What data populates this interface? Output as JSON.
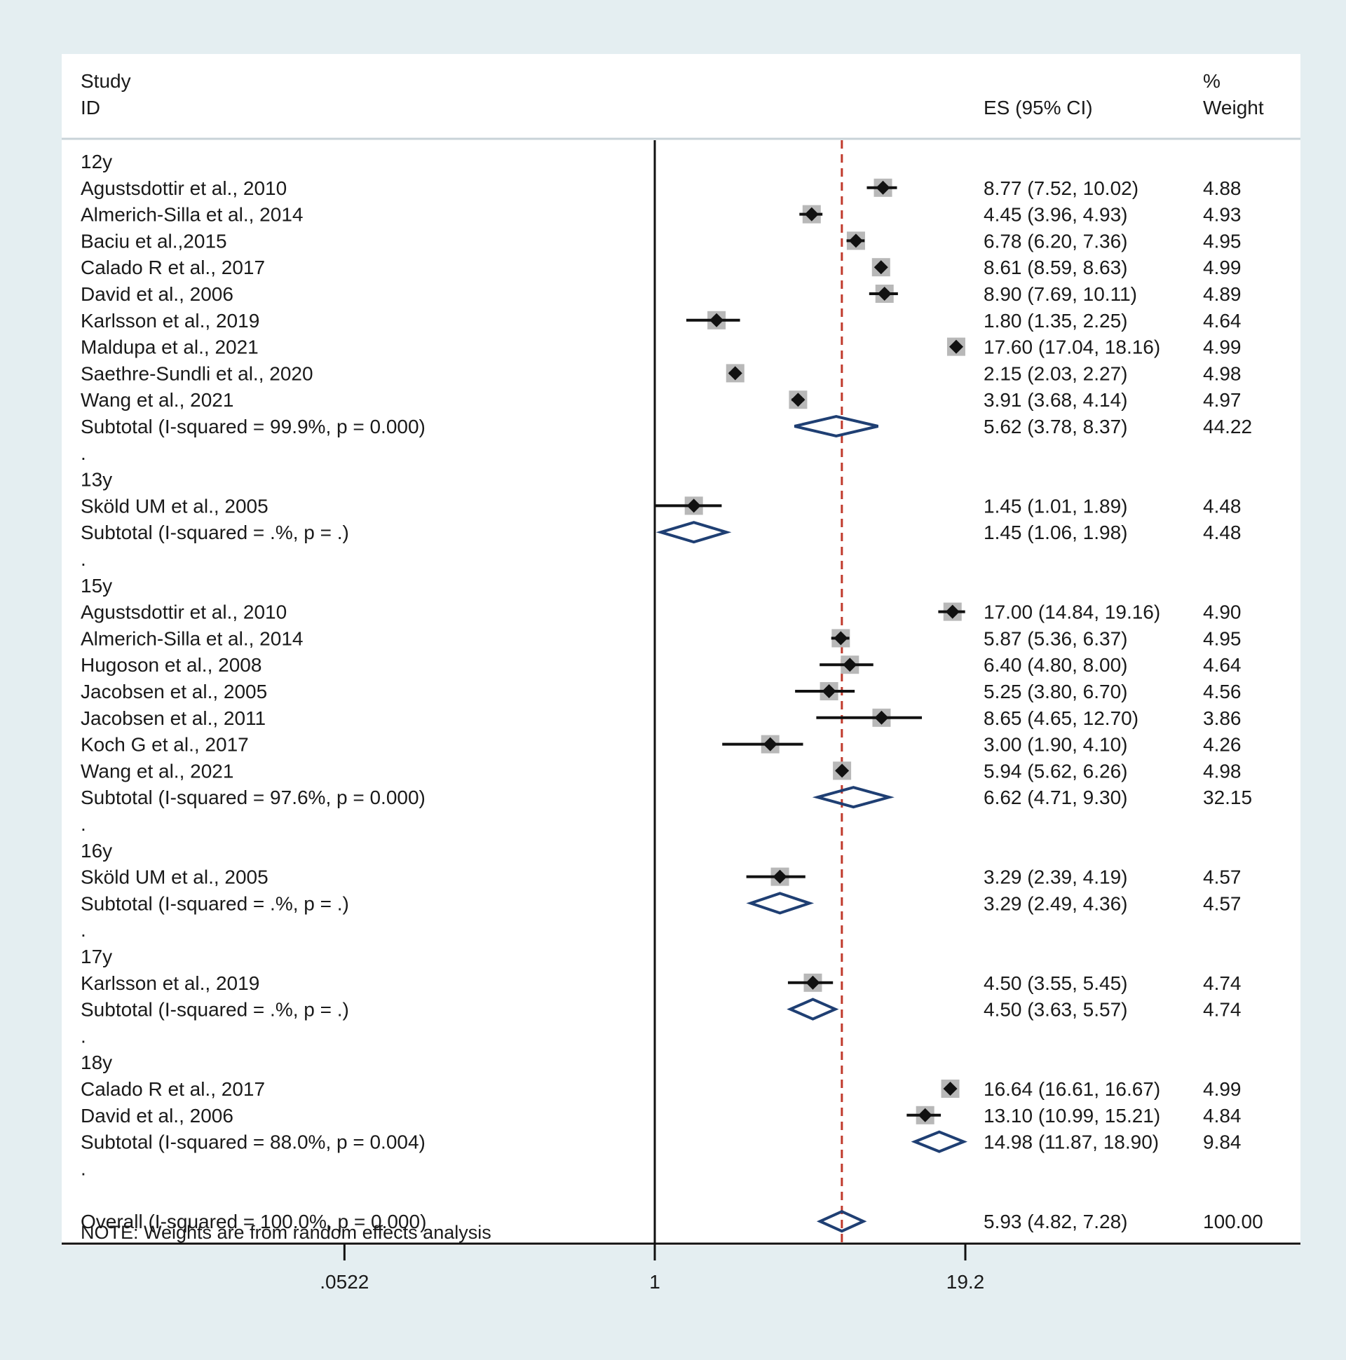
{
  "chart_data": {
    "type": "forest",
    "scale": "log",
    "headers": {
      "study_line1": "Study",
      "study_line2": "ID",
      "es": "ES (95% CI)",
      "weight_line1": "%",
      "weight_line2": "Weight"
    },
    "x_ticks": [
      {
        "value": 0.0522,
        "label": ".0522"
      },
      {
        "value": 1,
        "label": "1"
      },
      {
        "value": 19.2,
        "label": "19.2"
      }
    ],
    "reference_line": 1,
    "overall_line": 5.93,
    "note": "NOTE: Weights are from random effects analysis",
    "rows": [
      {
        "type": "group",
        "label": "12y"
      },
      {
        "type": "study",
        "label": "Agustsdottir et al., 2010",
        "es": 8.77,
        "lo": 7.52,
        "hi": 10.02,
        "es_text": "8.77 (7.52, 10.02)",
        "weight": 4.88,
        "weight_text": "4.88"
      },
      {
        "type": "study",
        "label": "Almerich-Silla et al., 2014",
        "es": 4.45,
        "lo": 3.96,
        "hi": 4.93,
        "es_text": "4.45 (3.96, 4.93)",
        "weight": 4.93,
        "weight_text": "4.93"
      },
      {
        "type": "study",
        "label": "Baciu et al.,2015",
        "es": 6.78,
        "lo": 6.2,
        "hi": 7.36,
        "es_text": "6.78 (6.20, 7.36)",
        "weight": 4.95,
        "weight_text": "4.95"
      },
      {
        "type": "study",
        "label": "Calado R et al., 2017",
        "es": 8.61,
        "lo": 8.59,
        "hi": 8.63,
        "es_text": "8.61 (8.59, 8.63)",
        "weight": 4.99,
        "weight_text": "4.99"
      },
      {
        "type": "study",
        "label": "David  et al., 2006",
        "es": 8.9,
        "lo": 7.69,
        "hi": 10.11,
        "es_text": "8.90 (7.69, 10.11)",
        "weight": 4.89,
        "weight_text": "4.89"
      },
      {
        "type": "study",
        "label": "Karlsson et al., 2019",
        "es": 1.8,
        "lo": 1.35,
        "hi": 2.25,
        "es_text": "1.80 (1.35, 2.25)",
        "weight": 4.64,
        "weight_text": "4.64"
      },
      {
        "type": "study",
        "label": "Maldupa et al., 2021",
        "es": 17.6,
        "lo": 17.04,
        "hi": 18.16,
        "es_text": "17.60 (17.04, 18.16)",
        "weight": 4.99,
        "weight_text": "4.99"
      },
      {
        "type": "study",
        "label": "Saethre-Sundli  et al., 2020",
        "es": 2.15,
        "lo": 2.03,
        "hi": 2.27,
        "es_text": "2.15 (2.03, 2.27)",
        "weight": 4.98,
        "weight_text": "4.98"
      },
      {
        "type": "study",
        "label": "Wang et al., 2021",
        "es": 3.91,
        "lo": 3.68,
        "hi": 4.14,
        "es_text": "3.91 (3.68, 4.14)",
        "weight": 4.97,
        "weight_text": "4.97"
      },
      {
        "type": "subtotal",
        "label": "Subtotal  (I-squared = 99.9%, p = 0.000)",
        "es": 5.62,
        "lo": 3.78,
        "hi": 8.37,
        "es_text": "5.62 (3.78, 8.37)",
        "weight": 44.22,
        "weight_text": "44.22"
      },
      {
        "type": "spacer",
        "label": "."
      },
      {
        "type": "group",
        "label": "13y"
      },
      {
        "type": "study",
        "label": "Sköld UM et al., 2005",
        "es": 1.45,
        "lo": 1.01,
        "hi": 1.89,
        "es_text": "1.45 (1.01, 1.89)",
        "weight": 4.48,
        "weight_text": "4.48"
      },
      {
        "type": "subtotal",
        "label": "Subtotal  (I-squared = .%, p = .)",
        "es": 1.45,
        "lo": 1.06,
        "hi": 1.98,
        "es_text": "1.45 (1.06, 1.98)",
        "weight": 4.48,
        "weight_text": "4.48"
      },
      {
        "type": "spacer",
        "label": "."
      },
      {
        "type": "group",
        "label": "15y"
      },
      {
        "type": "study",
        "label": "Agustsdottir et al., 2010",
        "es": 17.0,
        "lo": 14.84,
        "hi": 19.16,
        "es_text": "17.00 (14.84, 19.16)",
        "weight": 4.9,
        "weight_text": "4.90"
      },
      {
        "type": "study",
        "label": "Almerich-Silla et al., 2014",
        "es": 5.87,
        "lo": 5.36,
        "hi": 6.37,
        "es_text": "5.87 (5.36, 6.37)",
        "weight": 4.95,
        "weight_text": "4.95"
      },
      {
        "type": "study",
        "label": "Hugoson et al., 2008",
        "es": 6.4,
        "lo": 4.8,
        "hi": 8.0,
        "es_text": "6.40 (4.80, 8.00)",
        "weight": 4.64,
        "weight_text": "4.64"
      },
      {
        "type": "study",
        "label": "Jacobsen et al., 2005",
        "es": 5.25,
        "lo": 3.8,
        "hi": 6.7,
        "es_text": "5.25 (3.80, 6.70)",
        "weight": 4.56,
        "weight_text": "4.56"
      },
      {
        "type": "study",
        "label": "Jacobsen et al., 2011",
        "es": 8.65,
        "lo": 4.65,
        "hi": 12.7,
        "es_text": "8.65 (4.65, 12.70)",
        "weight": 3.86,
        "weight_text": "3.86"
      },
      {
        "type": "study",
        "label": "Koch G et al., 2017",
        "es": 3.0,
        "lo": 1.9,
        "hi": 4.1,
        "es_text": "3.00 (1.90, 4.10)",
        "weight": 4.26,
        "weight_text": "4.26"
      },
      {
        "type": "study",
        "label": "Wang et al., 2021",
        "es": 5.94,
        "lo": 5.62,
        "hi": 6.26,
        "es_text": "5.94 (5.62, 6.26)",
        "weight": 4.98,
        "weight_text": "4.98"
      },
      {
        "type": "subtotal",
        "label": "Subtotal  (I-squared = 97.6%, p = 0.000)",
        "es": 6.62,
        "lo": 4.71,
        "hi": 9.3,
        "es_text": "6.62 (4.71, 9.30)",
        "weight": 32.15,
        "weight_text": "32.15"
      },
      {
        "type": "spacer",
        "label": "."
      },
      {
        "type": "group",
        "label": "16y"
      },
      {
        "type": "study",
        "label": "Sköld UM et al., 2005",
        "es": 3.29,
        "lo": 2.39,
        "hi": 4.19,
        "es_text": "3.29 (2.39, 4.19)",
        "weight": 4.57,
        "weight_text": "4.57"
      },
      {
        "type": "subtotal",
        "label": "Subtotal  (I-squared = .%, p = .)",
        "es": 3.29,
        "lo": 2.49,
        "hi": 4.36,
        "es_text": "3.29 (2.49, 4.36)",
        "weight": 4.57,
        "weight_text": "4.57"
      },
      {
        "type": "spacer",
        "label": "."
      },
      {
        "type": "group",
        "label": "17y"
      },
      {
        "type": "study",
        "label": "Karlsson et al., 2019",
        "es": 4.5,
        "lo": 3.55,
        "hi": 5.45,
        "es_text": "4.50 (3.55, 5.45)",
        "weight": 4.74,
        "weight_text": "4.74"
      },
      {
        "type": "subtotal",
        "label": "Subtotal  (I-squared = .%, p = .)",
        "es": 4.5,
        "lo": 3.63,
        "hi": 5.57,
        "es_text": "4.50 (3.63, 5.57)",
        "weight": 4.74,
        "weight_text": "4.74"
      },
      {
        "type": "spacer",
        "label": "."
      },
      {
        "type": "group",
        "label": "18y"
      },
      {
        "type": "study",
        "label": "Calado R et al., 2017",
        "es": 16.64,
        "lo": 16.61,
        "hi": 16.67,
        "es_text": "16.64 (16.61, 16.67)",
        "weight": 4.99,
        "weight_text": "4.99"
      },
      {
        "type": "study",
        "label": "David  et al., 2006",
        "es": 13.1,
        "lo": 10.99,
        "hi": 15.21,
        "es_text": "13.10 (10.99, 15.21)",
        "weight": 4.84,
        "weight_text": "4.84"
      },
      {
        "type": "subtotal",
        "label": "Subtotal  (I-squared = 88.0%, p = 0.004)",
        "es": 14.98,
        "lo": 11.87,
        "hi": 18.9,
        "es_text": "14.98 (11.87, 18.90)",
        "weight": 9.84,
        "weight_text": "9.84"
      },
      {
        "type": "spacer",
        "label": "."
      },
      {
        "type": "overall",
        "label": "Overall  (I-squared = 100.0%, p = 0.000)",
        "es": 5.93,
        "lo": 4.82,
        "hi": 7.28,
        "es_text": "5.93 (4.82, 7.28)",
        "weight": 100.0,
        "weight_text": "100.00"
      }
    ]
  }
}
